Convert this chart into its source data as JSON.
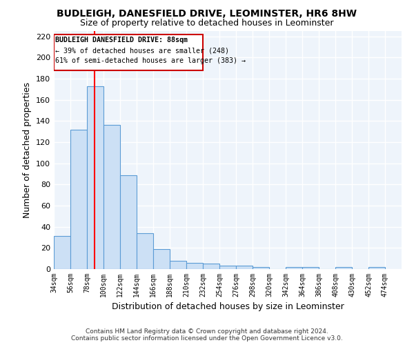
{
  "title": "BUDLEIGH, DANESFIELD DRIVE, LEOMINSTER, HR6 8HW",
  "subtitle": "Size of property relative to detached houses in Leominster",
  "xlabel": "Distribution of detached houses by size in Leominster",
  "ylabel": "Number of detached properties",
  "bar_color": "#cce0f5",
  "bar_edge_color": "#5b9bd5",
  "background_color": "#eef4fb",
  "grid_color": "#ffffff",
  "annotation_box_color": "#ffffff",
  "annotation_box_edge": "#cc0000",
  "redline_x": 88,
  "annotation_text_line1": "BUDLEIGH DANESFIELD DRIVE: 88sqm",
  "annotation_text_line2": "← 39% of detached houses are smaller (248)",
  "annotation_text_line3": "61% of semi-detached houses are larger (383) →",
  "bin_edges": [
    34,
    56,
    78,
    100,
    122,
    144,
    166,
    188,
    210,
    232,
    254,
    276,
    298,
    320,
    342,
    364,
    386,
    408,
    430,
    452,
    474
  ],
  "bar_heights": [
    31,
    132,
    173,
    136,
    89,
    34,
    19,
    8,
    6,
    5,
    3,
    3,
    2,
    0,
    2,
    2,
    0,
    2,
    0,
    2
  ],
  "tick_labels": [
    "34sqm",
    "56sqm",
    "78sqm",
    "100sqm",
    "122sqm",
    "144sqm",
    "166sqm",
    "188sqm",
    "210sqm",
    "232sqm",
    "254sqm",
    "276sqm",
    "298sqm",
    "320sqm",
    "342sqm",
    "364sqm",
    "386sqm",
    "408sqm",
    "430sqm",
    "452sqm",
    "474sqm"
  ],
  "ylim": [
    0,
    225
  ],
  "yticks": [
    0,
    20,
    40,
    60,
    80,
    100,
    120,
    140,
    160,
    180,
    200,
    220
  ],
  "footer_line1": "Contains HM Land Registry data © Crown copyright and database right 2024.",
  "footer_line2": "Contains public sector information licensed under the Open Government Licence v3.0."
}
